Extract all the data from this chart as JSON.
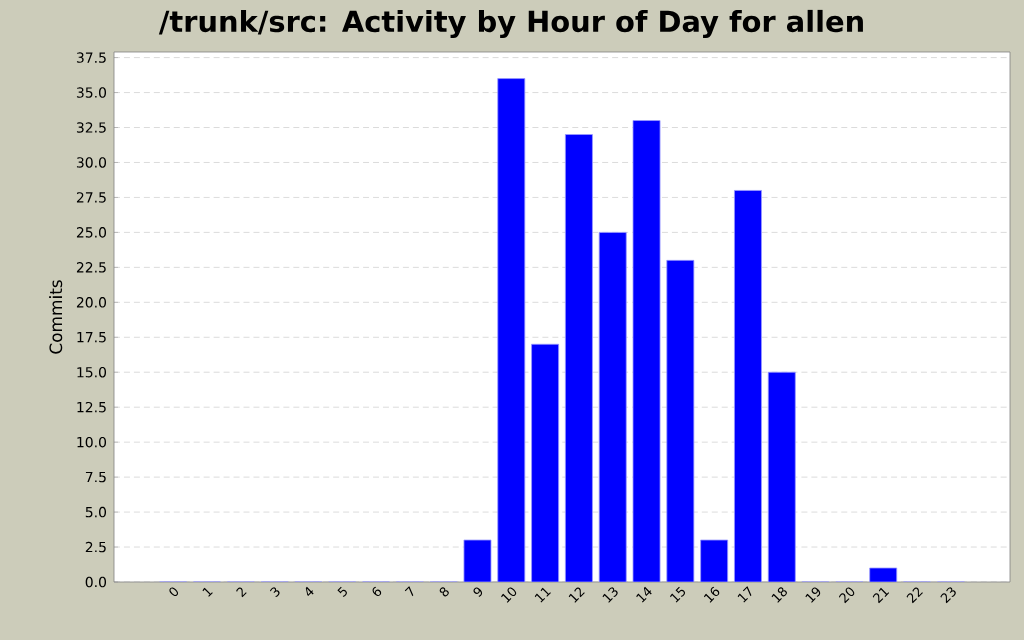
{
  "chart_data": {
    "type": "bar",
    "title": "/trunk/src: Activity by Hour of Day for allen",
    "ylabel": "Commits",
    "categories": [
      "0",
      "1",
      "2",
      "3",
      "4",
      "5",
      "6",
      "7",
      "8",
      "9",
      "10",
      "11",
      "12",
      "13",
      "14",
      "15",
      "16",
      "17",
      "18",
      "19",
      "20",
      "21",
      "22",
      "23"
    ],
    "values": [
      0,
      0,
      0,
      0,
      0,
      0,
      0,
      0,
      0,
      3,
      36,
      17,
      32,
      25,
      33,
      23,
      3,
      28,
      15,
      0,
      0,
      1,
      0,
      0
    ],
    "color": "#0000ff",
    "ylim": [
      0,
      37.9
    ],
    "yticks": [
      {
        "value": 0,
        "label": "0.0"
      },
      2.5,
      {
        "value": 5,
        "label": "5.0"
      },
      7.5,
      {
        "value": 10,
        "label": "10.0"
      },
      12.5,
      {
        "value": 15,
        "label": "15.0"
      },
      17.5,
      {
        "value": 20,
        "label": "20.0"
      },
      22.5,
      {
        "value": 25,
        "label": "25.0"
      },
      27.5,
      {
        "value": 30,
        "label": "30.0"
      },
      32.5,
      {
        "value": 35,
        "label": "35.0"
      },
      37.5
    ],
    "grid": "y"
  }
}
